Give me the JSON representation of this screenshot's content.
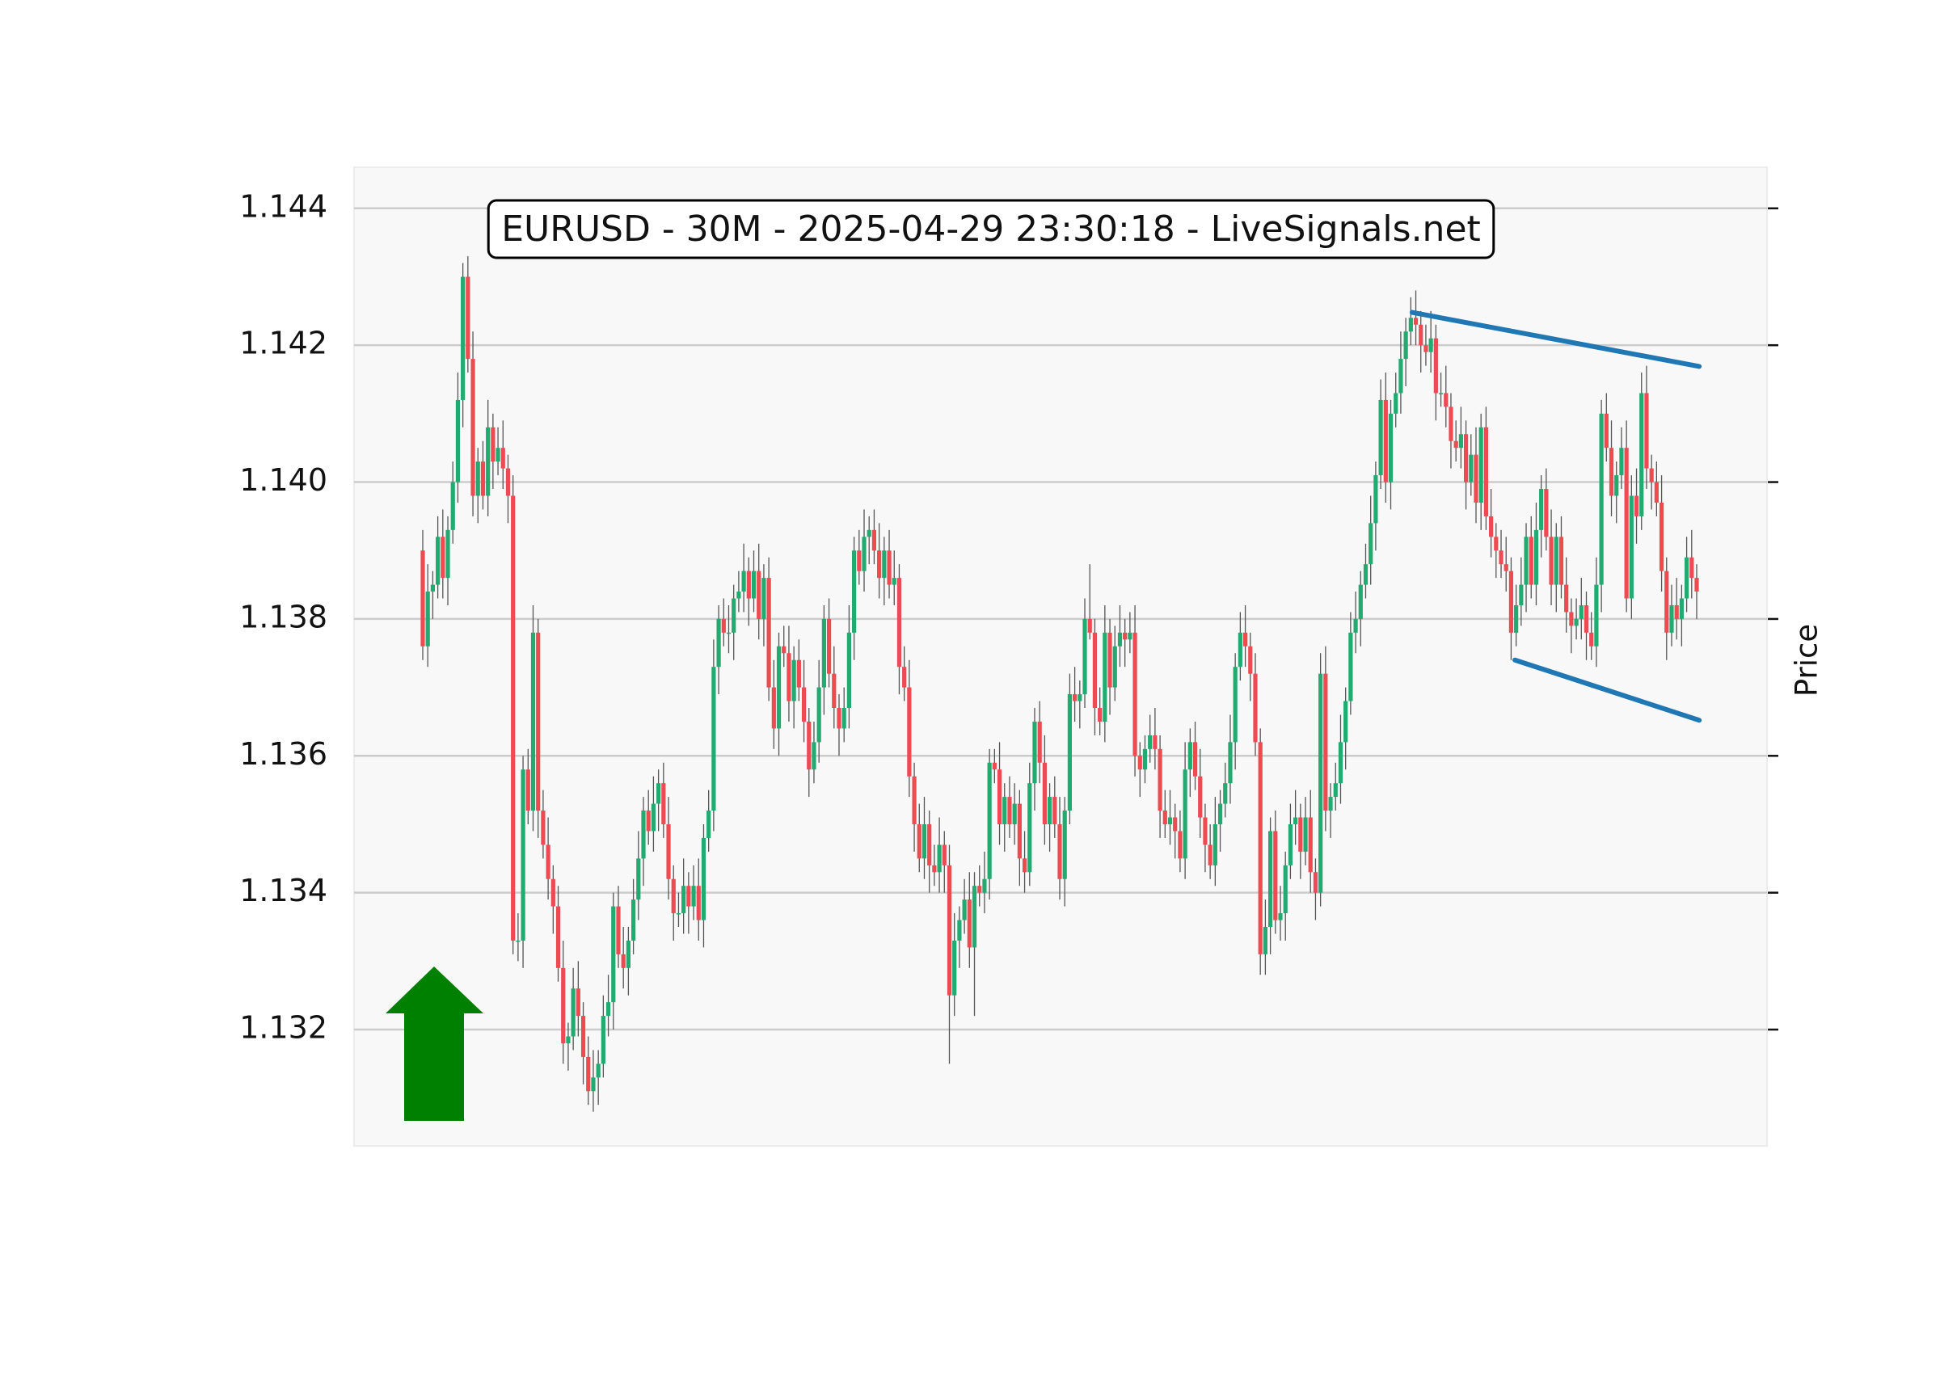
{
  "chart_data": {
    "type": "candlestick",
    "title": "EURUSD - 30M - 2025-04-29 23:30:18 - LiveSignals.net",
    "ylabel": "Price",
    "ylim": [
      1.1303,
      1.1446
    ],
    "yticks": [
      1.132,
      1.134,
      1.136,
      1.138,
      {
        "value": 1.14,
        "label": "1.140"
      },
      1.142,
      1.144
    ],
    "grid": true,
    "up_color": "#22ab70",
    "down_color": "#ee4a52",
    "open": [
      1.139,
      1.1376,
      1.1384,
      1.1385,
      1.1392,
      1.1386,
      1.1393,
      1.14,
      1.1412,
      1.143,
      1.1418,
      1.1398,
      1.1403,
      1.1398,
      1.1408,
      1.1403,
      1.1405,
      1.1402,
      1.1398,
      1.1333,
      1.1333,
      1.1358,
      1.1352,
      1.1378,
      1.1352,
      1.1347,
      1.1342,
      1.1338,
      1.1329,
      1.1318,
      1.1319,
      1.1326,
      1.1322,
      1.1316,
      1.1311,
      1.1313,
      1.1315,
      1.1322,
      1.1324,
      1.1338,
      1.1331,
      1.1329,
      1.1333,
      1.1339,
      1.1345,
      1.1352,
      1.1349,
      1.1353,
      1.1356,
      1.135,
      1.1342,
      1.1337,
      1.1337,
      1.1341,
      1.1338,
      1.1341,
      1.1336,
      1.1348,
      1.1352,
      1.1373,
      1.138,
      1.1378,
      1.1378,
      1.1383,
      1.1384,
      1.1387,
      1.1383,
      1.1387,
      1.138,
      1.1386,
      1.137,
      1.1364,
      1.1376,
      1.1375,
      1.1368,
      1.1374,
      1.137,
      1.1365,
      1.1358,
      1.1362,
      1.137,
      1.138,
      1.1372,
      1.1367,
      1.1364,
      1.1367,
      1.1378,
      1.139,
      1.1387,
      1.1392,
      1.1393,
      1.139,
      1.1386,
      1.139,
      1.1385,
      1.1386,
      1.1373,
      1.137,
      1.1357,
      1.135,
      1.1345,
      1.135,
      1.1344,
      1.1343,
      1.1347,
      1.1344,
      1.1325,
      1.1333,
      1.1336,
      1.1339,
      1.1332,
      1.1341,
      1.134,
      1.1342,
      1.1359,
      1.1358,
      1.135,
      1.1354,
      1.135,
      1.1353,
      1.1345,
      1.1343,
      1.1356,
      1.1365,
      1.1359,
      1.135,
      1.1354,
      1.135,
      1.1342,
      1.1352,
      1.1369,
      1.1368,
      1.1369,
      1.138,
      1.1378,
      1.1367,
      1.1365,
      1.1378,
      1.137,
      1.1376,
      1.1378,
      1.1377,
      1.1378,
      1.136,
      1.1358,
      1.1361,
      1.1363,
      1.1361,
      1.1352,
      1.135,
      1.1351,
      1.1349,
      1.1345,
      1.1358,
      1.1362,
      1.1357,
      1.1351,
      1.1347,
      1.1344,
      1.135,
      1.1353,
      1.1356,
      1.1362,
      1.1373,
      1.1378,
      1.1376,
      1.1372,
      1.1362,
      1.1331,
      1.1335,
      1.1349,
      1.1336,
      1.1337,
      1.1344,
      1.135,
      1.1351,
      1.1346,
      1.1351,
      1.1343,
      1.134,
      1.1372,
      1.1352,
      1.1354,
      1.1356,
      1.1362,
      1.1368,
      1.1378,
      1.138,
      1.1385,
      1.1388,
      1.1394,
      1.1401,
      1.1412,
      1.14,
      1.141,
      1.1413,
      1.1418,
      1.1422,
      1.1424,
      1.1423,
      1.142,
      1.1419,
      1.1421,
      1.1413,
      1.1413,
      1.1411,
      1.1406,
      1.1405,
      1.1407,
      1.14,
      1.1404,
      1.1397,
      1.1408,
      1.1395,
      1.1392,
      1.139,
      1.1388,
      1.1387,
      1.1378,
      1.1382,
      1.1385,
      1.1392,
      1.1385,
      1.1393,
      1.1399,
      1.1392,
      1.1385,
      1.1392,
      1.1385,
      1.1381,
      1.1379,
      1.138,
      1.1382,
      1.1378,
      1.1376,
      1.1385,
      1.141,
      1.1405,
      1.1398,
      1.1401,
      1.1405,
      1.1383,
      1.1398,
      1.1395,
      1.1413,
      1.1402,
      1.14,
      1.1397,
      1.1387,
      1.1378,
      1.1382,
      1.138,
      1.1383,
      1.1389,
      1.1386
    ],
    "high": [
      1.1393,
      1.1388,
      1.1387,
      1.1395,
      1.1396,
      1.1395,
      1.1403,
      1.1416,
      1.1432,
      1.1433,
      1.1422,
      1.1405,
      1.1406,
      1.1412,
      1.141,
      1.1408,
      1.1409,
      1.1404,
      1.1401,
      1.1337,
      1.136,
      1.1361,
      1.1382,
      1.138,
      1.1355,
      1.1351,
      1.1344,
      1.1341,
      1.1333,
      1.1321,
      1.1329,
      1.133,
      1.1324,
      1.1319,
      1.1317,
      1.1317,
      1.1325,
      1.1328,
      1.134,
      1.1341,
      1.1335,
      1.1335,
      1.1342,
      1.1349,
      1.1354,
      1.1355,
      1.1357,
      1.1358,
      1.1359,
      1.1354,
      1.1344,
      1.134,
      1.1345,
      1.1343,
      1.1344,
      1.1345,
      1.135,
      1.1355,
      1.1377,
      1.1382,
      1.1383,
      1.1382,
      1.1385,
      1.1387,
      1.1391,
      1.1389,
      1.139,
      1.1391,
      1.1388,
      1.1389,
      1.1374,
      1.1378,
      1.1379,
      1.1379,
      1.1376,
      1.1377,
      1.1374,
      1.1367,
      1.1365,
      1.1374,
      1.1382,
      1.1383,
      1.1376,
      1.1369,
      1.137,
      1.1382,
      1.1392,
      1.1393,
      1.1396,
      1.1395,
      1.1396,
      1.1394,
      1.1392,
      1.1393,
      1.139,
      1.1388,
      1.1376,
      1.1374,
      1.1359,
      1.1353,
      1.1354,
      1.1352,
      1.1347,
      1.1351,
      1.1349,
      1.1347,
      1.1337,
      1.1338,
      1.1342,
      1.1343,
      1.1343,
      1.1344,
      1.1346,
      1.1361,
      1.1361,
      1.1362,
      1.1356,
      1.1357,
      1.1356,
      1.1355,
      1.1349,
      1.1359,
      1.1367,
      1.1368,
      1.1363,
      1.1356,
      1.1357,
      1.1354,
      1.1354,
      1.1372,
      1.1373,
      1.1371,
      1.1383,
      1.1388,
      1.138,
      1.137,
      1.1382,
      1.138,
      1.1379,
      1.1382,
      1.138,
      1.1381,
      1.1382,
      1.1362,
      1.1363,
      1.1366,
      1.1367,
      1.1363,
      1.1355,
      1.1355,
      1.1353,
      1.1352,
      1.1362,
      1.1364,
      1.1365,
      1.1361,
      1.1353,
      1.135,
      1.1354,
      1.1355,
      1.1359,
      1.1366,
      1.1375,
      1.1381,
      1.1382,
      1.1378,
      1.1375,
      1.1364,
      1.1339,
      1.1351,
      1.1352,
      1.1341,
      1.1346,
      1.1353,
      1.1355,
      1.1353,
      1.1354,
      1.1355,
      1.1345,
      1.1375,
      1.1376,
      1.1356,
      1.1359,
      1.1366,
      1.137,
      1.1381,
      1.1384,
      1.1387,
      1.1391,
      1.1398,
      1.1403,
      1.1415,
      1.1416,
      1.1412,
      1.1416,
      1.1422,
      1.1424,
      1.1427,
      1.1428,
      1.1425,
      1.1423,
      1.1425,
      1.1423,
      1.1416,
      1.1417,
      1.1413,
      1.1409,
      1.1411,
      1.1409,
      1.1407,
      1.1408,
      1.141,
      1.1411,
      1.1399,
      1.1394,
      1.1393,
      1.1392,
      1.1389,
      1.1385,
      1.1389,
      1.1394,
      1.1395,
      1.1397,
      1.1401,
      1.1402,
      1.1396,
      1.1394,
      1.1395,
      1.1389,
      1.1383,
      1.1383,
      1.1386,
      1.1384,
      1.1381,
      1.1389,
      1.1412,
      1.1413,
      1.1409,
      1.1403,
      1.1408,
      1.1409,
      1.1401,
      1.1402,
      1.1416,
      1.1417,
      1.1404,
      1.1403,
      1.1401,
      1.1389,
      1.1385,
      1.1386,
      1.1385,
      1.1392,
      1.1393,
      1.1388
    ],
    "low": [
      1.1374,
      1.1373,
      1.138,
      1.1383,
      1.1383,
      1.1382,
      1.1391,
      1.1397,
      1.1408,
      1.1416,
      1.1395,
      1.1394,
      1.1396,
      1.1395,
      1.1399,
      1.1401,
      1.1399,
      1.1394,
      1.1331,
      1.133,
      1.1329,
      1.135,
      1.1349,
      1.1348,
      1.1345,
      1.1339,
      1.1334,
      1.1327,
      1.1315,
      1.1314,
      1.1317,
      1.1319,
      1.1312,
      1.1309,
      1.1308,
      1.1309,
      1.1313,
      1.1319,
      1.132,
      1.1329,
      1.1326,
      1.1325,
      1.1331,
      1.1336,
      1.1341,
      1.1347,
      1.1346,
      1.1349,
      1.1348,
      1.1339,
      1.1333,
      1.1335,
      1.1334,
      1.1334,
      1.1336,
      1.1333,
      1.1332,
      1.1346,
      1.1349,
      1.1369,
      1.1376,
      1.1375,
      1.1374,
      1.1381,
      1.1381,
      1.1379,
      1.1381,
      1.1377,
      1.1376,
      1.1368,
      1.1361,
      1.136,
      1.1373,
      1.1365,
      1.1364,
      1.1368,
      1.1362,
      1.1354,
      1.1356,
      1.1359,
      1.1366,
      1.137,
      1.1364,
      1.136,
      1.1362,
      1.1364,
      1.1374,
      1.1385,
      1.1384,
      1.1388,
      1.1388,
      1.1383,
      1.1382,
      1.1383,
      1.1382,
      1.1369,
      1.1368,
      1.1354,
      1.1346,
      1.1343,
      1.1342,
      1.134,
      1.1341,
      1.134,
      1.134,
      1.1315,
      1.1322,
      1.1329,
      1.1334,
      1.1329,
      1.1322,
      1.1338,
      1.1337,
      1.1339,
      1.1356,
      1.1347,
      1.1346,
      1.1348,
      1.1347,
      1.1341,
      1.134,
      1.1341,
      1.1352,
      1.1356,
      1.1347,
      1.1346,
      1.1348,
      1.1339,
      1.1338,
      1.135,
      1.1365,
      1.1364,
      1.1367,
      1.1377,
      1.1363,
      1.1363,
      1.1362,
      1.1366,
      1.1368,
      1.1373,
      1.1373,
      1.1375,
      1.1357,
      1.1354,
      1.1356,
      1.1359,
      1.1358,
      1.1348,
      1.1348,
      1.1347,
      1.1345,
      1.1343,
      1.1342,
      1.1354,
      1.1355,
      1.1348,
      1.1343,
      1.1342,
      1.1341,
      1.1346,
      1.1351,
      1.1353,
      1.1358,
      1.1371,
      1.1373,
      1.1368,
      1.136,
      1.1328,
      1.1328,
      1.1331,
      1.1334,
      1.1333,
      1.1333,
      1.1342,
      1.1347,
      1.1342,
      1.1344,
      1.134,
      1.1336,
      1.1338,
      1.1349,
      1.1348,
      1.1352,
      1.1353,
      1.1358,
      1.1366,
      1.1375,
      1.1376,
      1.1383,
      1.1385,
      1.139,
      1.1399,
      1.1397,
      1.1396,
      1.1408,
      1.141,
      1.1414,
      1.142,
      1.142,
      1.1416,
      1.1417,
      1.1416,
      1.1409,
      1.1411,
      1.1408,
      1.1402,
      1.1403,
      1.1402,
      1.1396,
      1.1398,
      1.1394,
      1.1393,
      1.1393,
      1.1389,
      1.1386,
      1.1386,
      1.1384,
      1.1374,
      1.1376,
      1.1379,
      1.1381,
      1.1383,
      1.1382,
      1.1389,
      1.139,
      1.1382,
      1.1381,
      1.1383,
      1.1378,
      1.1375,
      1.1377,
      1.1377,
      1.1374,
      1.1374,
      1.1373,
      1.1381,
      1.1403,
      1.1395,
      1.1394,
      1.1399,
      1.1381,
      1.138,
      1.1391,
      1.1393,
      1.1399,
      1.1396,
      1.1395,
      1.1384,
      1.1374,
      1.1376,
      1.1377,
      1.1376,
      1.1381,
      1.1383,
      1.138
    ],
    "close": [
      1.1376,
      1.1384,
      1.1385,
      1.1392,
      1.1386,
      1.1393,
      1.14,
      1.1412,
      1.143,
      1.1418,
      1.1398,
      1.1403,
      1.1398,
      1.1408,
      1.1403,
      1.1405,
      1.1402,
      1.1398,
      1.1333,
      1.1333,
      1.1358,
      1.1352,
      1.1378,
      1.1352,
      1.1347,
      1.1342,
      1.1338,
      1.1329,
      1.1318,
      1.1319,
      1.1326,
      1.1322,
      1.1316,
      1.1311,
      1.1313,
      1.1315,
      1.1322,
      1.1324,
      1.1338,
      1.1331,
      1.1329,
      1.1333,
      1.1339,
      1.1345,
      1.1352,
      1.1349,
      1.1353,
      1.1356,
      1.135,
      1.1342,
      1.1337,
      1.1337,
      1.1341,
      1.1338,
      1.1341,
      1.1336,
      1.1348,
      1.1352,
      1.1373,
      1.138,
      1.1378,
      1.1378,
      1.1383,
      1.1384,
      1.1387,
      1.1383,
      1.1387,
      1.138,
      1.1386,
      1.137,
      1.1364,
      1.1376,
      1.1375,
      1.1368,
      1.1374,
      1.137,
      1.1365,
      1.1358,
      1.1362,
      1.137,
      1.138,
      1.1372,
      1.1367,
      1.1364,
      1.1367,
      1.1378,
      1.139,
      1.1387,
      1.1392,
      1.1393,
      1.139,
      1.1386,
      1.139,
      1.1385,
      1.1386,
      1.1373,
      1.137,
      1.1357,
      1.135,
      1.1345,
      1.135,
      1.1344,
      1.1343,
      1.1347,
      1.1344,
      1.1325,
      1.1333,
      1.1336,
      1.1339,
      1.1332,
      1.1341,
      1.134,
      1.1342,
      1.1359,
      1.1358,
      1.135,
      1.1354,
      1.135,
      1.1353,
      1.1345,
      1.1343,
      1.1356,
      1.1365,
      1.1359,
      1.135,
      1.1354,
      1.135,
      1.1342,
      1.1352,
      1.1369,
      1.1368,
      1.1369,
      1.138,
      1.1378,
      1.1367,
      1.1365,
      1.1378,
      1.137,
      1.1376,
      1.1378,
      1.1377,
      1.1378,
      1.136,
      1.1358,
      1.1361,
      1.1363,
      1.1361,
      1.1352,
      1.135,
      1.1351,
      1.1349,
      1.1345,
      1.1358,
      1.1362,
      1.1357,
      1.1351,
      1.1347,
      1.1344,
      1.135,
      1.1353,
      1.1356,
      1.1362,
      1.1373,
      1.1378,
      1.1376,
      1.1372,
      1.1362,
      1.1331,
      1.1335,
      1.1349,
      1.1336,
      1.1337,
      1.1344,
      1.135,
      1.1351,
      1.1346,
      1.1351,
      1.1343,
      1.134,
      1.1372,
      1.1352,
      1.1354,
      1.1356,
      1.1362,
      1.1368,
      1.1378,
      1.138,
      1.1385,
      1.1388,
      1.1394,
      1.1401,
      1.1412,
      1.14,
      1.141,
      1.1413,
      1.1418,
      1.1422,
      1.1424,
      1.1423,
      1.142,
      1.1419,
      1.1421,
      1.1413,
      1.1413,
      1.1411,
      1.1406,
      1.1405,
      1.1407,
      1.14,
      1.1404,
      1.1397,
      1.1408,
      1.1395,
      1.1392,
      1.139,
      1.1388,
      1.1387,
      1.1378,
      1.1382,
      1.1385,
      1.1392,
      1.1385,
      1.1393,
      1.1399,
      1.1392,
      1.1385,
      1.1392,
      1.1385,
      1.1381,
      1.1379,
      1.138,
      1.1382,
      1.1378,
      1.1376,
      1.1385,
      1.141,
      1.1405,
      1.1398,
      1.1401,
      1.1405,
      1.1383,
      1.1398,
      1.1395,
      1.1413,
      1.1402,
      1.14,
      1.1397,
      1.1387,
      1.1378,
      1.1382,
      1.138,
      1.1383,
      1.1389,
      1.1386,
      1.1384
    ],
    "trendlines": [
      {
        "color": "#1f77b4",
        "x": [
          197.25,
          254.5
        ],
        "y": [
          1.14248,
          1.14169
        ]
      },
      {
        "color": "#1f77b4",
        "x": [
          217.75,
          254.5
        ],
        "y": [
          1.1374,
          1.13652
        ]
      }
    ]
  }
}
